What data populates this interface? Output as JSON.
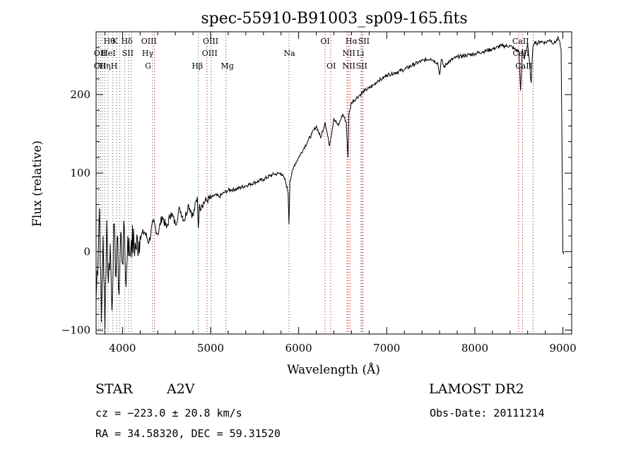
{
  "chart_data": {
    "type": "line",
    "title": "spec-55910-B91003_sp09-165.fits",
    "xlabel": "Wavelength (Å)",
    "ylabel": "Flux (relative)",
    "xlim": [
      3700,
      9100
    ],
    "ylim": [
      -105,
      280
    ],
    "xticks": [
      4000,
      5000,
      6000,
      7000,
      8000,
      9000
    ],
    "yticks": [
      -100,
      0,
      100,
      200
    ],
    "x_tick_labels": [
      "4000",
      "5000",
      "6000",
      "7000",
      "8000",
      "9000"
    ],
    "y_tick_labels": [
      "−100",
      "0",
      "100",
      "200"
    ],
    "series": [
      {
        "name": "flux",
        "x": [
          3700,
          3740,
          3760,
          3780,
          3800,
          3820,
          3840,
          3860,
          3880,
          3900,
          3920,
          3940,
          3960,
          3980,
          4000,
          4020,
          4040,
          4060,
          4080,
          4100,
          4150,
          4200,
          4250,
          4300,
          4350,
          4400,
          4450,
          4500,
          4550,
          4600,
          4650,
          4700,
          4750,
          4800,
          4850,
          4860,
          4870,
          4900,
          4950,
          5000,
          5050,
          5100,
          5150,
          5200,
          5300,
          5400,
          5500,
          5600,
          5700,
          5800,
          5850,
          5880,
          5890,
          5900,
          5950,
          6000,
          6050,
          6100,
          6150,
          6200,
          6250,
          6300,
          6350,
          6400,
          6450,
          6500,
          6540,
          6560,
          6570,
          6580,
          6600,
          6650,
          6700,
          6750,
          6800,
          6850,
          6900,
          6950,
          7000,
          7100,
          7200,
          7300,
          7400,
          7500,
          7580,
          7600,
          7620,
          7650,
          7700,
          7800,
          7900,
          8000,
          8100,
          8200,
          8300,
          8400,
          8450,
          8500,
          8520,
          8540,
          8560,
          8600,
          8640,
          8660,
          8680,
          8700,
          8750,
          8800,
          8850,
          8900,
          8950,
          8980,
          9000,
          9010
        ],
        "values": [
          -60,
          55,
          -90,
          20,
          -100,
          40,
          -40,
          10,
          -75,
          35,
          -30,
          20,
          -55,
          25,
          -15,
          30,
          -45,
          20,
          -5,
          15,
          5,
          20,
          25,
          12,
          38,
          22,
          45,
          30,
          50,
          35,
          55,
          40,
          60,
          45,
          70,
          30,
          55,
          60,
          65,
          68,
          72,
          70,
          75,
          78,
          80,
          84,
          88,
          92,
          98,
          100,
          90,
          75,
          35,
          90,
          110,
          120,
          130,
          140,
          150,
          160,
          145,
          165,
          135,
          170,
          160,
          175,
          165,
          120,
          175,
          180,
          190,
          195,
          200,
          205,
          208,
          212,
          218,
          220,
          225,
          228,
          232,
          238,
          243,
          246,
          240,
          225,
          245,
          235,
          242,
          248,
          250,
          252,
          255,
          258,
          262,
          262,
          258,
          255,
          205,
          258,
          245,
          265,
          215,
          262,
          268,
          265,
          268,
          266,
          270,
          265,
          272,
          258,
          0,
          0
        ]
      }
    ],
    "lines_top_row": [
      "Hθ",
      "K",
      "Hδ",
      "OIII",
      "OIII",
      "OI",
      "Hα",
      "SII",
      "CaII"
    ],
    "lines_mid_row": [
      "OII",
      "HeI",
      "SII",
      "Hγ",
      "OIII",
      "Na",
      "NII",
      "Li",
      "CaII"
    ],
    "lines_bot_row": [
      "OII",
      "Hη",
      "H",
      "G",
      "Hβ",
      "Mg",
      "OI",
      "NII",
      "SII",
      "CaII"
    ]
  },
  "info": {
    "object_class": "STAR",
    "subclass": "A2V",
    "survey": "LAMOST DR2",
    "velocity": "cz = −223.0 ± 20.8 km/s",
    "obs_date": "Obs-Date: 20111214",
    "coordinates": "RA =  34.58320, DEC =  59.31520"
  }
}
